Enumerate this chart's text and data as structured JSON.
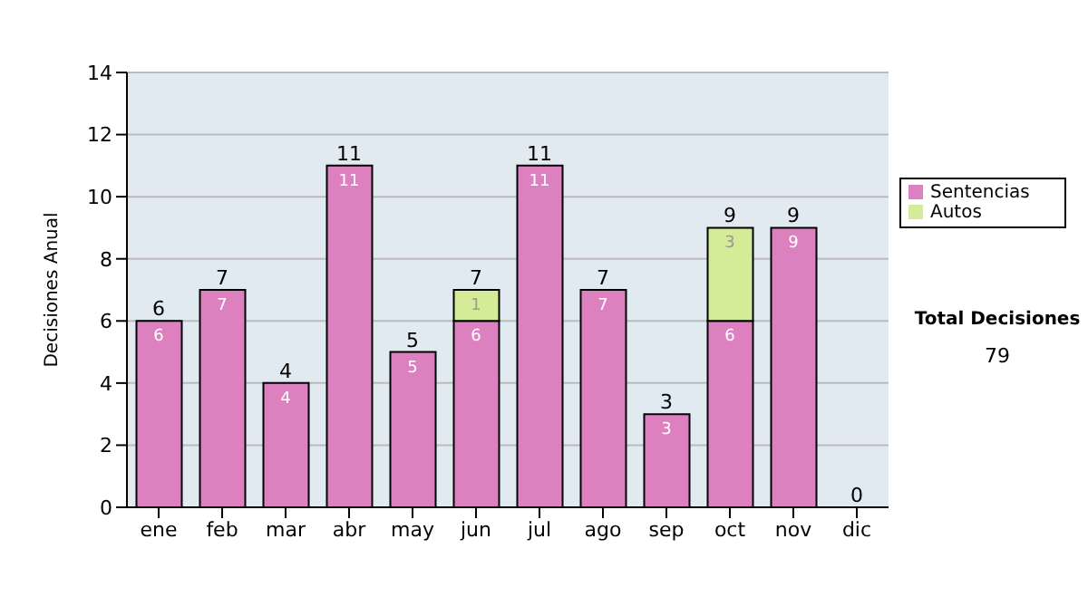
{
  "chart_data": {
    "type": "bar",
    "ylabel": "Decisiones Anual",
    "categories": [
      "ene",
      "feb",
      "mar",
      "abr",
      "may",
      "jun",
      "jul",
      "ago",
      "sep",
      "oct",
      "nov",
      "dic"
    ],
    "series": [
      {
        "name": "Sentencias",
        "color": "#dd80c0",
        "values": [
          6,
          7,
          4,
          11,
          5,
          6,
          11,
          7,
          3,
          6,
          9,
          0
        ],
        "value_labels": [
          "6",
          "7",
          "4",
          "11",
          "5",
          "6",
          "11",
          "7",
          "3",
          "6",
          "9",
          null
        ]
      },
      {
        "name": "Autos",
        "color": "#d4eb98",
        "values": [
          0,
          0,
          0,
          0,
          0,
          1,
          0,
          0,
          0,
          3,
          0,
          0
        ],
        "value_labels": [
          null,
          null,
          null,
          null,
          null,
          "1",
          null,
          null,
          null,
          "3",
          null,
          null
        ]
      }
    ],
    "stacked": true,
    "totals": [
      "6",
      "7",
      "4",
      "11",
      "5",
      "7",
      "11",
      "7",
      "3",
      "9",
      "9",
      "0"
    ],
    "ylim": [
      0,
      14
    ],
    "yticks": [
      0,
      2,
      4,
      6,
      8,
      10,
      12,
      14
    ],
    "grid": "y",
    "legend": "right",
    "annotations": [
      "Total Decisiones",
      "79"
    ]
  }
}
